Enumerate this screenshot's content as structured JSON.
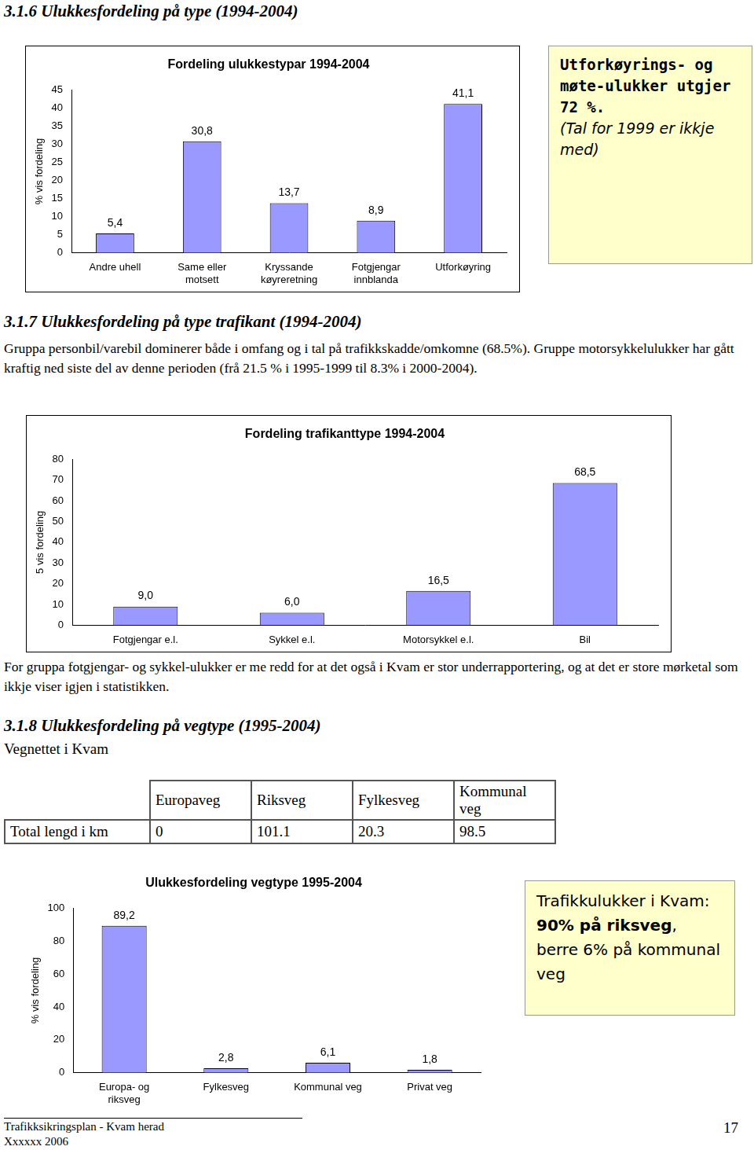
{
  "text": {
    "heading_1": "3.1.6 Ulukkesfordeling på type (1994-2004)",
    "callout_1": [
      {
        "text": "Utforkøyrings- og møte-ulukker utgjer 72 %.",
        "style": "bold"
      },
      {
        "text": "(Tal for 1999 er ikkje med)",
        "style": "italic"
      }
    ],
    "heading_2": "3.1.7 Ulukkesfordeling på type trafikant (1994-2004)",
    "paragraph_2": "Gruppa personbil/varebil dominerer både i omfang og i tal på trafikkskadde/omkomne (68.5%). Gruppe motorsykkelulukker har gått kraftig ned siste del av denne perioden (frå 21.5 % i 1995-1999 til 8.3% i 2000-2004).",
    "paragraph_3": "For gruppa fotgjengar- og sykkel-ulukker er me redd for at det også i Kvam er stor underrapportering, og at det er store mørketal som ikkje viser igjen i statistikken.",
    "heading_3": "3.1.8 Ulukkesfordeling på vegtype (1995-2004)",
    "subheading_3": "Vegnettet i Kvam",
    "callout_2": [
      {
        "text": "Trafikkulukker i Kvam: ",
        "style": "normal"
      },
      {
        "text": "90% på riksveg",
        "style": "bold"
      },
      {
        "text": ", berre 6% på kommunal veg",
        "style": "normal"
      }
    ],
    "footer": [
      "Trafikksikringsplan - Kvam herad",
      "Xxxxxx 2006"
    ],
    "page_number": "17"
  },
  "table": {
    "header": [
      "",
      "Europaveg",
      "Riksveg",
      "Fylkesveg",
      "Kommunal veg"
    ],
    "rows": [
      [
        "Total lengd i km",
        0,
        101.1,
        20.3,
        98.5
      ]
    ]
  },
  "chart_data": [
    {
      "type": "bar",
      "title": "Fordeling ulukkestypar 1994-2004",
      "y_label": "% vis fordeling",
      "categories": [
        "Andre uhell",
        "Same eller motsett",
        "Kryssande køyreretning",
        "Fotgjengar innblanda",
        "Utforkøyring"
      ],
      "values": [
        5.4,
        30.8,
        13.7,
        8.9,
        41.1
      ],
      "value_labels": [
        "5,4",
        "30,8",
        "13,7",
        "8,9",
        "41,1"
      ],
      "color": "#9999ff",
      "ylim": [
        0,
        45
      ],
      "yticks": [
        0,
        5,
        10,
        15,
        20,
        25,
        30,
        35,
        40,
        45
      ],
      "grid": false,
      "data_labels": true
    },
    {
      "type": "bar",
      "title": "Fordeling trafikanttype 1994-2004",
      "y_label": "5 vis fordeling",
      "categories": [
        "Fotgjengar e.l.",
        "Sykkel e.l.",
        "Motorsykkel e.l.",
        "Bil"
      ],
      "values": [
        9.0,
        6.0,
        16.5,
        68.5
      ],
      "value_labels": [
        "9,0",
        "6,0",
        "16,5",
        "68,5"
      ],
      "color": "#9999ff",
      "ylim": [
        0,
        80
      ],
      "yticks": [
        0,
        10,
        20,
        30,
        40,
        50,
        60,
        70,
        80
      ],
      "grid": false,
      "data_labels": true
    },
    {
      "type": "bar",
      "title": "Ulukkesfordeling vegtype 1995-2004",
      "y_label": "% vis fordeling",
      "categories": [
        "Europa- og riksveg",
        "Fylkesveg",
        "Kommunal veg",
        "Privat veg"
      ],
      "values": [
        89.2,
        2.8,
        6.1,
        1.8
      ],
      "value_labels": [
        "89,2",
        "2,8",
        "6,1",
        "1,8"
      ],
      "color": "#9999ff",
      "ylim": [
        0,
        100
      ],
      "yticks": [
        0,
        20,
        40,
        60,
        80,
        100
      ],
      "grid": false,
      "data_labels": true
    }
  ]
}
